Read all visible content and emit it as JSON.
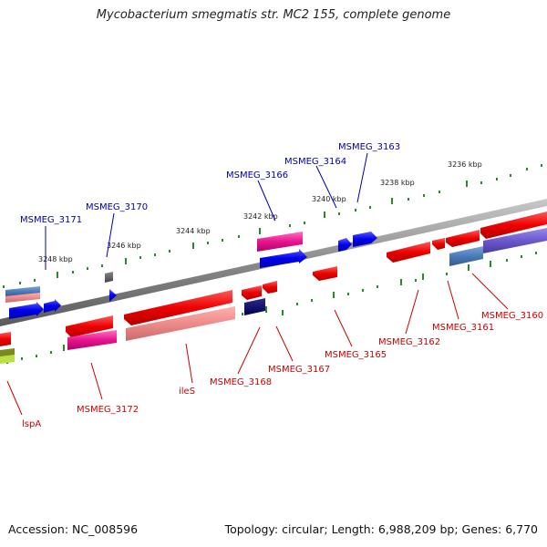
{
  "title": "Mycobacterium smegmatis str. MC2 155, complete genome",
  "footer": {
    "accession": "Accession: NC_008596",
    "summary": "Topology: circular; Length: 6,988,209 bp; Genes: 6,770"
  },
  "colors": {
    "forward_gene": "#0000ee",
    "reverse_gene": "#ee0000",
    "backbone": "#888888",
    "tick": "#2a8a2a",
    "forward_label": "#0000aa",
    "reverse_label": "#cc0000"
  },
  "scale_labels": {
    "outer": [
      "3248 kbp",
      "3246 kbp",
      "3244 kbp",
      "3242 kbp",
      "3240 kbp",
      "3238 kbp",
      "3236 kbp"
    ]
  },
  "gene_labels": {
    "forward": [
      "MSMEG_3171",
      "MSMEG_3170",
      "MSMEG_3166",
      "MSMEG_3164",
      "MSMEG_3163"
    ],
    "reverse": [
      "lspA",
      "MSMEG_3172",
      "ileS",
      "MSMEG_3168",
      "MSMEG_3167",
      "MSMEG_3165",
      "MSMEG_3162",
      "MSMEG_3161",
      "MSMEG_3160"
    ]
  }
}
